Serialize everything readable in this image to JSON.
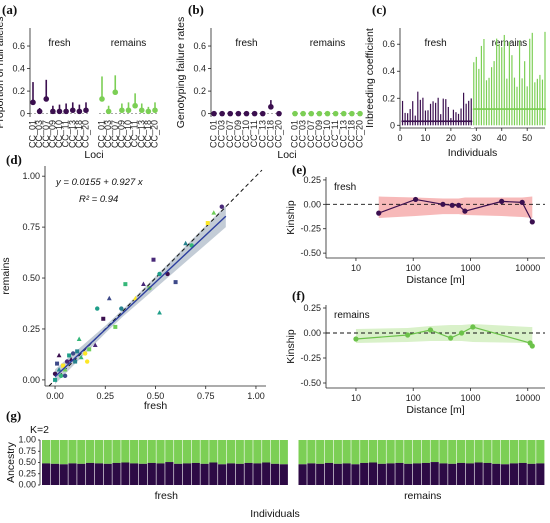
{
  "colors": {
    "fresh": "#3b0f4f",
    "remains": "#7ccf55",
    "dark": "#2d0a45"
  },
  "chart_data": [
    {
      "id": "a",
      "panel_label": "(a)",
      "type": "scatter",
      "ylabel": "Proportion of null alleles",
      "xlabel": "Loci",
      "groups": [
        "fresh",
        "remains"
      ],
      "categories": [
        "CC_01",
        "CC_03",
        "CC_07",
        "CC_09",
        "CC_10",
        "CC_11",
        "CC_13",
        "CC_18",
        "CC_20"
      ],
      "yticks": [
        0.0,
        0.2,
        0.4,
        0.6
      ],
      "ylim": [
        -0.03,
        0.76
      ],
      "series": [
        {
          "name": "fresh",
          "values": [
            0.1,
            0.02,
            0.13,
            0.02,
            0.02,
            0.02,
            0.03,
            0.02,
            0.03
          ],
          "upper": [
            0.28,
            0.05,
            0.3,
            0.07,
            0.08,
            0.09,
            0.1,
            0.08,
            0.1
          ]
        },
        {
          "name": "remains",
          "values": [
            0.13,
            0.02,
            0.19,
            0.03,
            0.03,
            0.07,
            0.03,
            0.02,
            0.03
          ],
          "upper": [
            0.33,
            0.07,
            0.34,
            0.09,
            0.1,
            0.18,
            0.09,
            0.06,
            0.1
          ]
        }
      ]
    },
    {
      "id": "b",
      "panel_label": "(b)",
      "type": "scatter",
      "ylabel": "Genotyping failure rates",
      "xlabel": "Loci",
      "groups": [
        "fresh",
        "remains"
      ],
      "categories": [
        "CC_01",
        "CC_03",
        "CC_07",
        "CC_09",
        "CC_10",
        "CC_11",
        "CC_13",
        "CC_18",
        "CC_20"
      ],
      "yticks": [
        0.0,
        0.2,
        0.4,
        0.6
      ],
      "ylim": [
        -0.03,
        0.76
      ],
      "series": [
        {
          "name": "fresh",
          "values": [
            0.0,
            0.0,
            0.0,
            0.0,
            0.0,
            0.0,
            0.0,
            0.06,
            0.0
          ],
          "upper": [
            0.0,
            0.0,
            0.0,
            0.0,
            0.0,
            0.0,
            0.0,
            0.12,
            0.0
          ]
        },
        {
          "name": "remains",
          "values": [
            0.0,
            0.0,
            0.0,
            0.0,
            0.0,
            0.0,
            0.0,
            0.0,
            0.0
          ],
          "upper": [
            0.0,
            0.0,
            0.0,
            0.0,
            0.0,
            0.0,
            0.0,
            0.0,
            0.0
          ]
        }
      ]
    },
    {
      "id": "c",
      "panel_label": "(c)",
      "type": "scatter",
      "ylabel": "Inbreeding coefficient",
      "xlabel": "Individuals",
      "groups": [
        "fresh",
        "remains"
      ],
      "xticks": [
        0,
        10,
        20,
        30,
        40,
        50
      ],
      "yticks": [
        0.0,
        0.1,
        0.2,
        0.3,
        0.4,
        0.5,
        0.6
      ],
      "ylim": [
        -0.02,
        0.72
      ],
      "fresh_range": [
        1,
        28
      ],
      "remains_range": [
        29,
        57
      ],
      "series": [
        {
          "name": "fresh",
          "mean_level": 0.03,
          "upper_range": [
            0.05,
            0.25
          ]
        },
        {
          "name": "remains",
          "mean_level": 0.12,
          "upper_range": [
            0.25,
            0.7
          ]
        }
      ]
    },
    {
      "id": "d",
      "panel_label": "(d)",
      "type": "scatter",
      "xlabel": "fresh",
      "ylabel": "remains",
      "xlim": [
        -0.05,
        1.05
      ],
      "ylim": [
        -0.03,
        1.05
      ],
      "xticks": [
        0.0,
        0.25,
        0.5,
        0.75,
        1.0
      ],
      "yticks": [
        0.0,
        0.25,
        0.5,
        0.75,
        1.0
      ],
      "xtick_labels": [
        "0.00",
        "0.25",
        "0.50",
        "0.75",
        "1.00"
      ],
      "ytick_labels": [
        "0.00",
        "0.25",
        "0.50",
        "0.75",
        "1.00"
      ],
      "equation": "y = 0.0155 + 0.927 x",
      "r2": "R² = 0.94",
      "fit": {
        "intercept": 0.0155,
        "slope": 0.927,
        "x_range": [
          0.0,
          0.85
        ]
      },
      "identity_line": true,
      "points": [
        [
          0.0,
          0.03
        ],
        [
          0.01,
          0.08
        ],
        [
          0.02,
          0.05
        ],
        [
          0.03,
          0.02
        ],
        [
          0.04,
          0.07
        ],
        [
          0.05,
          0.05
        ],
        [
          0.06,
          0.09
        ],
        [
          0.07,
          0.12
        ],
        [
          0.08,
          0.1
        ],
        [
          0.09,
          0.13
        ],
        [
          0.1,
          0.09
        ],
        [
          0.12,
          0.2
        ],
        [
          0.15,
          0.13
        ],
        [
          0.17,
          0.15
        ],
        [
          0.2,
          0.17
        ],
        [
          0.21,
          0.35
        ],
        [
          0.24,
          0.3
        ],
        [
          0.27,
          0.4
        ],
        [
          0.33,
          0.35
        ],
        [
          0.35,
          0.47
        ],
        [
          0.4,
          0.4
        ],
        [
          0.47,
          0.45
        ],
        [
          0.49,
          0.59
        ],
        [
          0.52,
          0.33
        ],
        [
          0.56,
          0.52
        ],
        [
          0.6,
          0.48
        ],
        [
          0.65,
          0.67
        ],
        [
          0.68,
          0.66
        ],
        [
          0.76,
          0.77
        ],
        [
          0.79,
          0.82
        ],
        [
          0.83,
          0.85
        ],
        [
          0.0,
          0.0
        ],
        [
          0.02,
          0.12
        ],
        [
          0.05,
          0.02
        ],
        [
          0.11,
          0.14
        ],
        [
          0.13,
          0.11
        ],
        [
          0.16,
          0.09
        ],
        [
          0.3,
          0.26
        ],
        [
          0.44,
          0.47
        ],
        [
          0.52,
          0.52
        ]
      ]
    },
    {
      "id": "e",
      "panel_label": "(e)",
      "type": "line",
      "strip": "fresh",
      "xlabel": "Distance [m]",
      "ylabel": "Kinship",
      "xscale": "log",
      "xlim": [
        3,
        20000
      ],
      "ylim": [
        -0.55,
        0.28
      ],
      "xticks": [
        10,
        100,
        1000,
        10000
      ],
      "yticks": [
        0.25,
        0.0,
        -0.25,
        -0.5
      ],
      "ytick_labels": [
        "0.25",
        "0.00",
        "-0.25",
        "-0.50"
      ],
      "x": [
        25,
        110,
        330,
        480,
        620,
        800,
        3500,
        8000,
        12000
      ],
      "y": [
        -0.09,
        0.05,
        0.0,
        -0.01,
        -0.01,
        -0.07,
        0.03,
        0.02,
        -0.18
      ],
      "envelope_upper": [
        0.08,
        0.07,
        0.06,
        0.06,
        0.06,
        0.07,
        0.07,
        0.07,
        0.08
      ],
      "envelope_lower": [
        -0.14,
        -0.12,
        -0.1,
        -0.1,
        -0.1,
        -0.11,
        -0.12,
        -0.13,
        -0.14
      ]
    },
    {
      "id": "f",
      "panel_label": "(f)",
      "type": "line",
      "strip": "remains",
      "xlabel": "Distance [m]",
      "ylabel": "Kinship",
      "xscale": "log",
      "xlim": [
        3,
        20000
      ],
      "ylim": [
        -0.55,
        0.28
      ],
      "xticks": [
        10,
        100,
        1000,
        10000
      ],
      "yticks": [
        0.25,
        0.0,
        -0.25,
        -0.5
      ],
      "ytick_labels": [
        "0.25",
        "0.00",
        "-0.25",
        "-0.50"
      ],
      "x": [
        10,
        80,
        200,
        450,
        700,
        1100,
        11000,
        12000
      ],
      "y": [
        -0.06,
        -0.02,
        0.03,
        -0.05,
        0.0,
        0.06,
        -0.1,
        -0.13
      ],
      "envelope_upper": [
        0.04,
        0.05,
        0.07,
        0.08,
        0.08,
        0.09,
        0.06,
        0.06
      ],
      "envelope_lower": [
        -0.1,
        -0.09,
        -0.08,
        -0.08,
        -0.08,
        -0.09,
        -0.1,
        -0.1
      ]
    },
    {
      "id": "g",
      "panel_label": "(g)",
      "type": "bar",
      "stacked": true,
      "k_label": "K=2",
      "ylabel": "Ancestry",
      "xlabel": "Individuals",
      "yticks": [
        0.0,
        0.25,
        0.5,
        0.75,
        1.0
      ],
      "ytick_labels": [
        "0.00",
        "0.25",
        "0.50",
        "0.75",
        "1.00"
      ],
      "groups": [
        {
          "name": "fresh",
          "cluster1": [
            0.48,
            0.47,
            0.46,
            0.48,
            0.47,
            0.49,
            0.48,
            0.47,
            0.49,
            0.5,
            0.48,
            0.47,
            0.49,
            0.48,
            0.51,
            0.47,
            0.48,
            0.49,
            0.47,
            0.5,
            0.46,
            0.48,
            0.47,
            0.49,
            0.48,
            0.5,
            0.47,
            0.46
          ]
        },
        {
          "name": "remains",
          "cluster1": [
            0.46,
            0.48,
            0.47,
            0.49,
            0.47,
            0.48,
            0.46,
            0.49,
            0.5,
            0.47,
            0.48,
            0.49,
            0.47,
            0.48,
            0.49,
            0.51,
            0.48,
            0.47,
            0.49,
            0.48,
            0.5,
            0.49,
            0.47,
            0.46,
            0.48,
            0.49,
            0.47,
            0.48
          ]
        }
      ]
    }
  ]
}
